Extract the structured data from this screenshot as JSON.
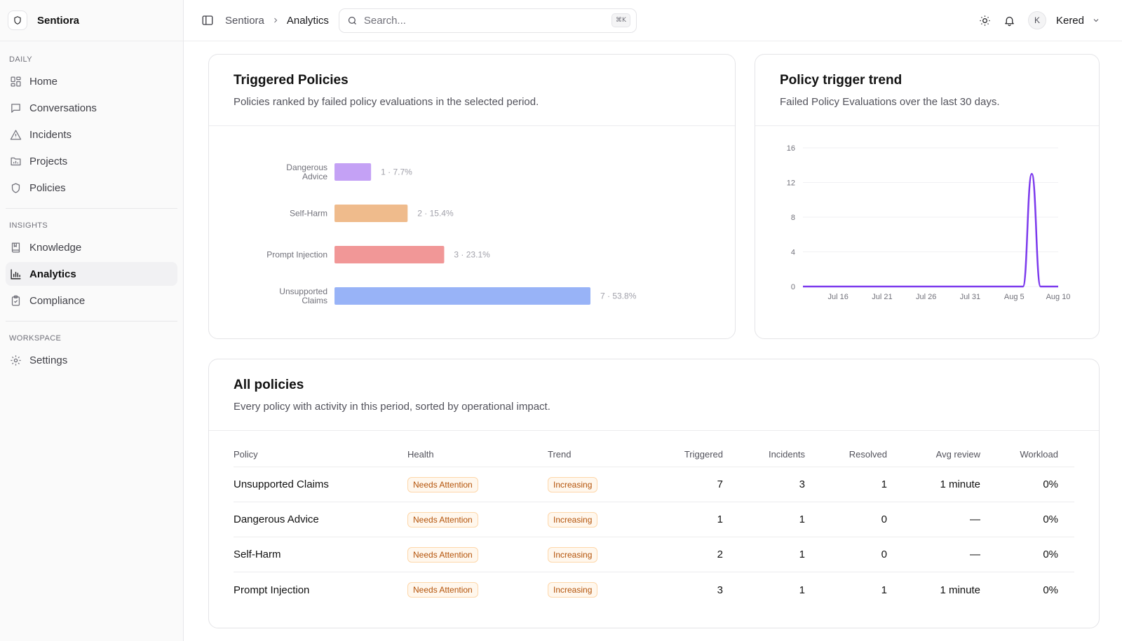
{
  "brand": {
    "name": "Sentiora"
  },
  "sidebar": {
    "sections": [
      {
        "label": "DAILY",
        "items": [
          {
            "label": "Home",
            "icon": "grid-icon"
          },
          {
            "label": "Conversations",
            "icon": "message-icon"
          },
          {
            "label": "Incidents",
            "icon": "alert-triangle-icon"
          },
          {
            "label": "Projects",
            "icon": "folder-icon"
          },
          {
            "label": "Policies",
            "icon": "shield-icon"
          }
        ]
      },
      {
        "label": "INSIGHTS",
        "items": [
          {
            "label": "Knowledge",
            "icon": "book-icon"
          },
          {
            "label": "Analytics",
            "icon": "bar-chart-icon"
          },
          {
            "label": "Compliance",
            "icon": "clipboard-check-icon"
          }
        ]
      },
      {
        "label": "WORKSPACE",
        "items": [
          {
            "label": "Settings",
            "icon": "gear-icon"
          }
        ]
      }
    ]
  },
  "topbar": {
    "breadcrumb": {
      "parent": "Sentiora",
      "current": "Analytics"
    },
    "search": {
      "placeholder": "Search...",
      "shortcut": "⌘K"
    },
    "user": {
      "initial": "K",
      "name": "Kered"
    }
  },
  "triggered_policies": {
    "title": "Triggered Policies",
    "description": "Policies ranked by failed policy evaluations in the selected period.",
    "chart_data": {
      "type": "bar",
      "orientation": "horizontal",
      "categories": [
        [
          "Dangerous",
          "Advice"
        ],
        [
          "Self-Harm"
        ],
        [
          "Prompt Injection"
        ],
        [
          "Unsupported",
          "Claims"
        ]
      ],
      "values": [
        1,
        2,
        3,
        7
      ],
      "data_labels": [
        "1 · 7.7%",
        "2 · 15.4%",
        "3 · 23.1%",
        "7 · 53.8%"
      ],
      "colors": [
        "#c4a1f5",
        "#efbb8c",
        "#f19797",
        "#98b3f7"
      ]
    }
  },
  "trend": {
    "title": "Policy trigger trend",
    "description": "Failed Policy Evaluations over the last 30 days.",
    "chart_data": {
      "type": "line",
      "x": [
        "Jul 12",
        "Jul 13",
        "Jul 14",
        "Jul 15",
        "Jul 16",
        "Jul 17",
        "Jul 18",
        "Jul 19",
        "Jul 20",
        "Jul 21",
        "Jul 22",
        "Jul 23",
        "Jul 24",
        "Jul 25",
        "Jul 26",
        "Jul 27",
        "Jul 28",
        "Jul 29",
        "Jul 30",
        "Jul 31",
        "Aug 1",
        "Aug 2",
        "Aug 3",
        "Aug 4",
        "Aug 5",
        "Aug 6",
        "Aug 7",
        "Aug 8",
        "Aug 9",
        "Aug 10"
      ],
      "y": [
        0,
        0,
        0,
        0,
        0,
        0,
        0,
        0,
        0,
        0,
        0,
        0,
        0,
        0,
        0,
        0,
        0,
        0,
        0,
        0,
        0,
        0,
        0,
        0,
        0,
        0,
        13,
        0,
        0,
        0
      ],
      "x_ticks": [
        "Jul 16",
        "Jul 21",
        "Jul 26",
        "Jul 31",
        "Aug 5",
        "Aug 10"
      ],
      "y_ticks": [
        0,
        4,
        8,
        12,
        16
      ],
      "ylim": [
        0,
        16
      ],
      "color": "#7c3aed",
      "grid": "horizontal"
    }
  },
  "all_policies": {
    "title": "All policies",
    "description": "Every policy with activity in this period, sorted by operational impact.",
    "columns": [
      "Policy",
      "Health",
      "Trend",
      "Triggered",
      "Incidents",
      "Resolved",
      "Avg review",
      "Workload"
    ],
    "rows": [
      [
        "Unsupported Claims",
        "Needs Attention",
        "Increasing",
        "7",
        "3",
        "1",
        "1 minute",
        "0%"
      ],
      [
        "Dangerous Advice",
        "Needs Attention",
        "Increasing",
        "1",
        "1",
        "0",
        "—",
        "0%"
      ],
      [
        "Self-Harm",
        "Needs Attention",
        "Increasing",
        "2",
        "1",
        "0",
        "—",
        "0%"
      ],
      [
        "Prompt Injection",
        "Needs Attention",
        "Increasing",
        "3",
        "1",
        "1",
        "1 minute",
        "0%"
      ]
    ]
  }
}
